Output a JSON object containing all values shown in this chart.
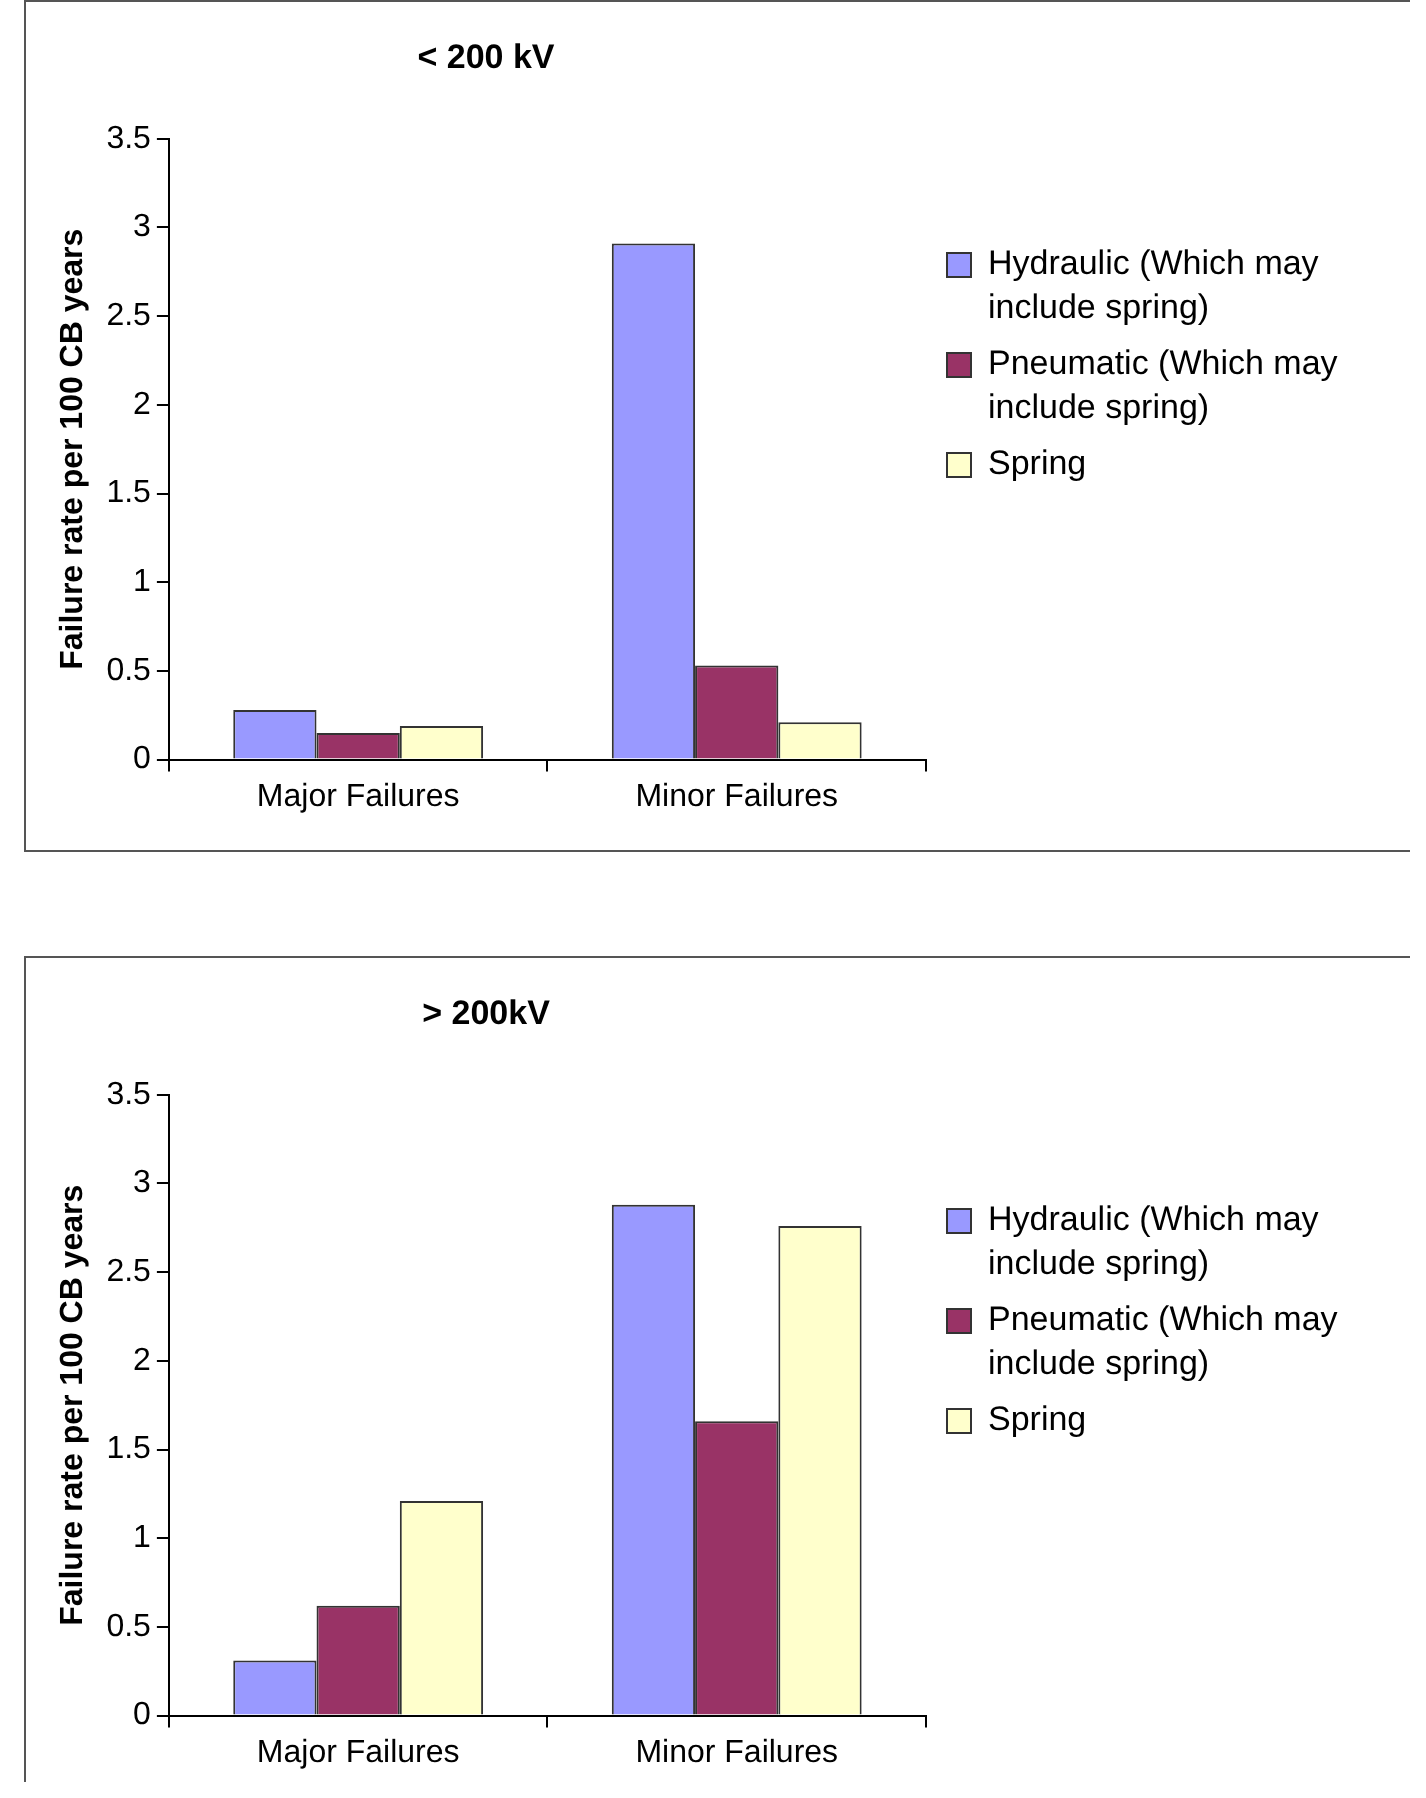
{
  "chart_data": [
    {
      "type": "bar",
      "title": "< 200 kV",
      "ylabel": "Failure rate per 100 CB years",
      "categories": [
        "Major Failures",
        "Minor Failures"
      ],
      "series": [
        {
          "name": "Hydraulic (Which may include spring)",
          "color": "#9999ff",
          "values": [
            0.28,
            2.91
          ]
        },
        {
          "name": "Pneumatic (Which may include spring)",
          "color": "#993366",
          "values": [
            0.15,
            0.53
          ]
        },
        {
          "name": "Spring",
          "color": "#ffffcc",
          "values": [
            0.19,
            0.21
          ]
        }
      ],
      "ylim": [
        0,
        3.5
      ],
      "yticks": [
        0,
        0.5,
        1,
        1.5,
        2,
        2.5,
        3,
        3.5
      ],
      "grid": false,
      "legend": "right"
    },
    {
      "type": "bar",
      "title": "> 200kV",
      "ylabel": "Failure rate per 100 CB years",
      "categories": [
        "Major Failures",
        "Minor Failures"
      ],
      "series": [
        {
          "name": "Hydraulic (Which may include spring)",
          "color": "#9999ff",
          "values": [
            0.31,
            2.88
          ]
        },
        {
          "name": "Pneumatic (Which may include spring)",
          "color": "#993366",
          "values": [
            0.62,
            1.66
          ]
        },
        {
          "name": "Spring",
          "color": "#ffffcc",
          "values": [
            1.21,
            2.76
          ]
        }
      ],
      "ylim": [
        0,
        3.5
      ],
      "yticks": [
        0,
        0.5,
        1,
        1.5,
        2,
        2.5,
        3,
        3.5
      ],
      "grid": false,
      "legend": "right"
    }
  ]
}
